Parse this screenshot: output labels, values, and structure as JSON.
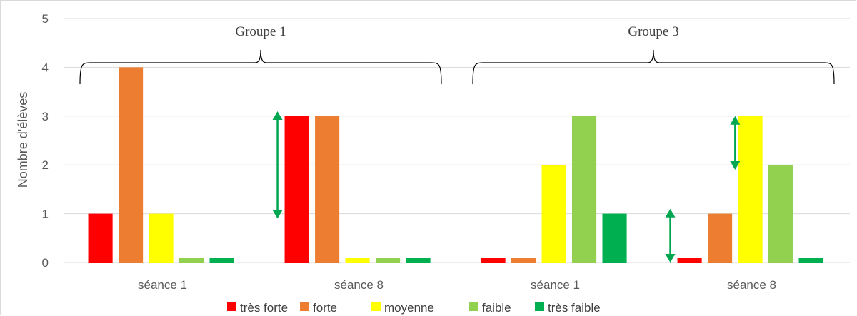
{
  "chart_data": {
    "type": "bar",
    "ylabel": "Nombre d'élèves",
    "ylim": [
      0,
      5
    ],
    "yticks": [
      "0",
      "1",
      "2",
      "3",
      "4",
      "5"
    ],
    "grid": true,
    "legend_position": "bottom",
    "categories": [
      "séance 1",
      "séance 8",
      "séance 1",
      "séance 8"
    ],
    "groups": [
      {
        "label": "Groupe 1",
        "categories": [
          0,
          1
        ]
      },
      {
        "label": "Groupe 3",
        "categories": [
          2,
          3
        ]
      }
    ],
    "series": [
      {
        "name": "très forte",
        "color": "#ff0000",
        "values": [
          1,
          3,
          0.1,
          0.1
        ]
      },
      {
        "name": "forte",
        "color": "#ed7d31",
        "values": [
          4,
          3,
          0.1,
          1
        ]
      },
      {
        "name": "moyenne",
        "color": "#ffff00",
        "values": [
          1,
          0.1,
          2,
          3
        ]
      },
      {
        "name": "faible",
        "color": "#92d050",
        "values": [
          0.1,
          0.1,
          3,
          2
        ]
      },
      {
        "name": "très faible",
        "color": "#00b050",
        "values": [
          0.1,
          0.1,
          1,
          0.1
        ]
      }
    ],
    "annotations": [
      {
        "type": "double-arrow",
        "color": "#00b050",
        "category": 1,
        "series": 0,
        "from": 0.9,
        "to": 3.1
      },
      {
        "type": "double-arrow",
        "color": "#00b050",
        "category": 3,
        "series": 0,
        "from": 0,
        "to": 1.1
      },
      {
        "type": "double-arrow",
        "color": "#00b050",
        "category": 3,
        "series": 2,
        "from": 1.9,
        "to": 3
      }
    ]
  }
}
